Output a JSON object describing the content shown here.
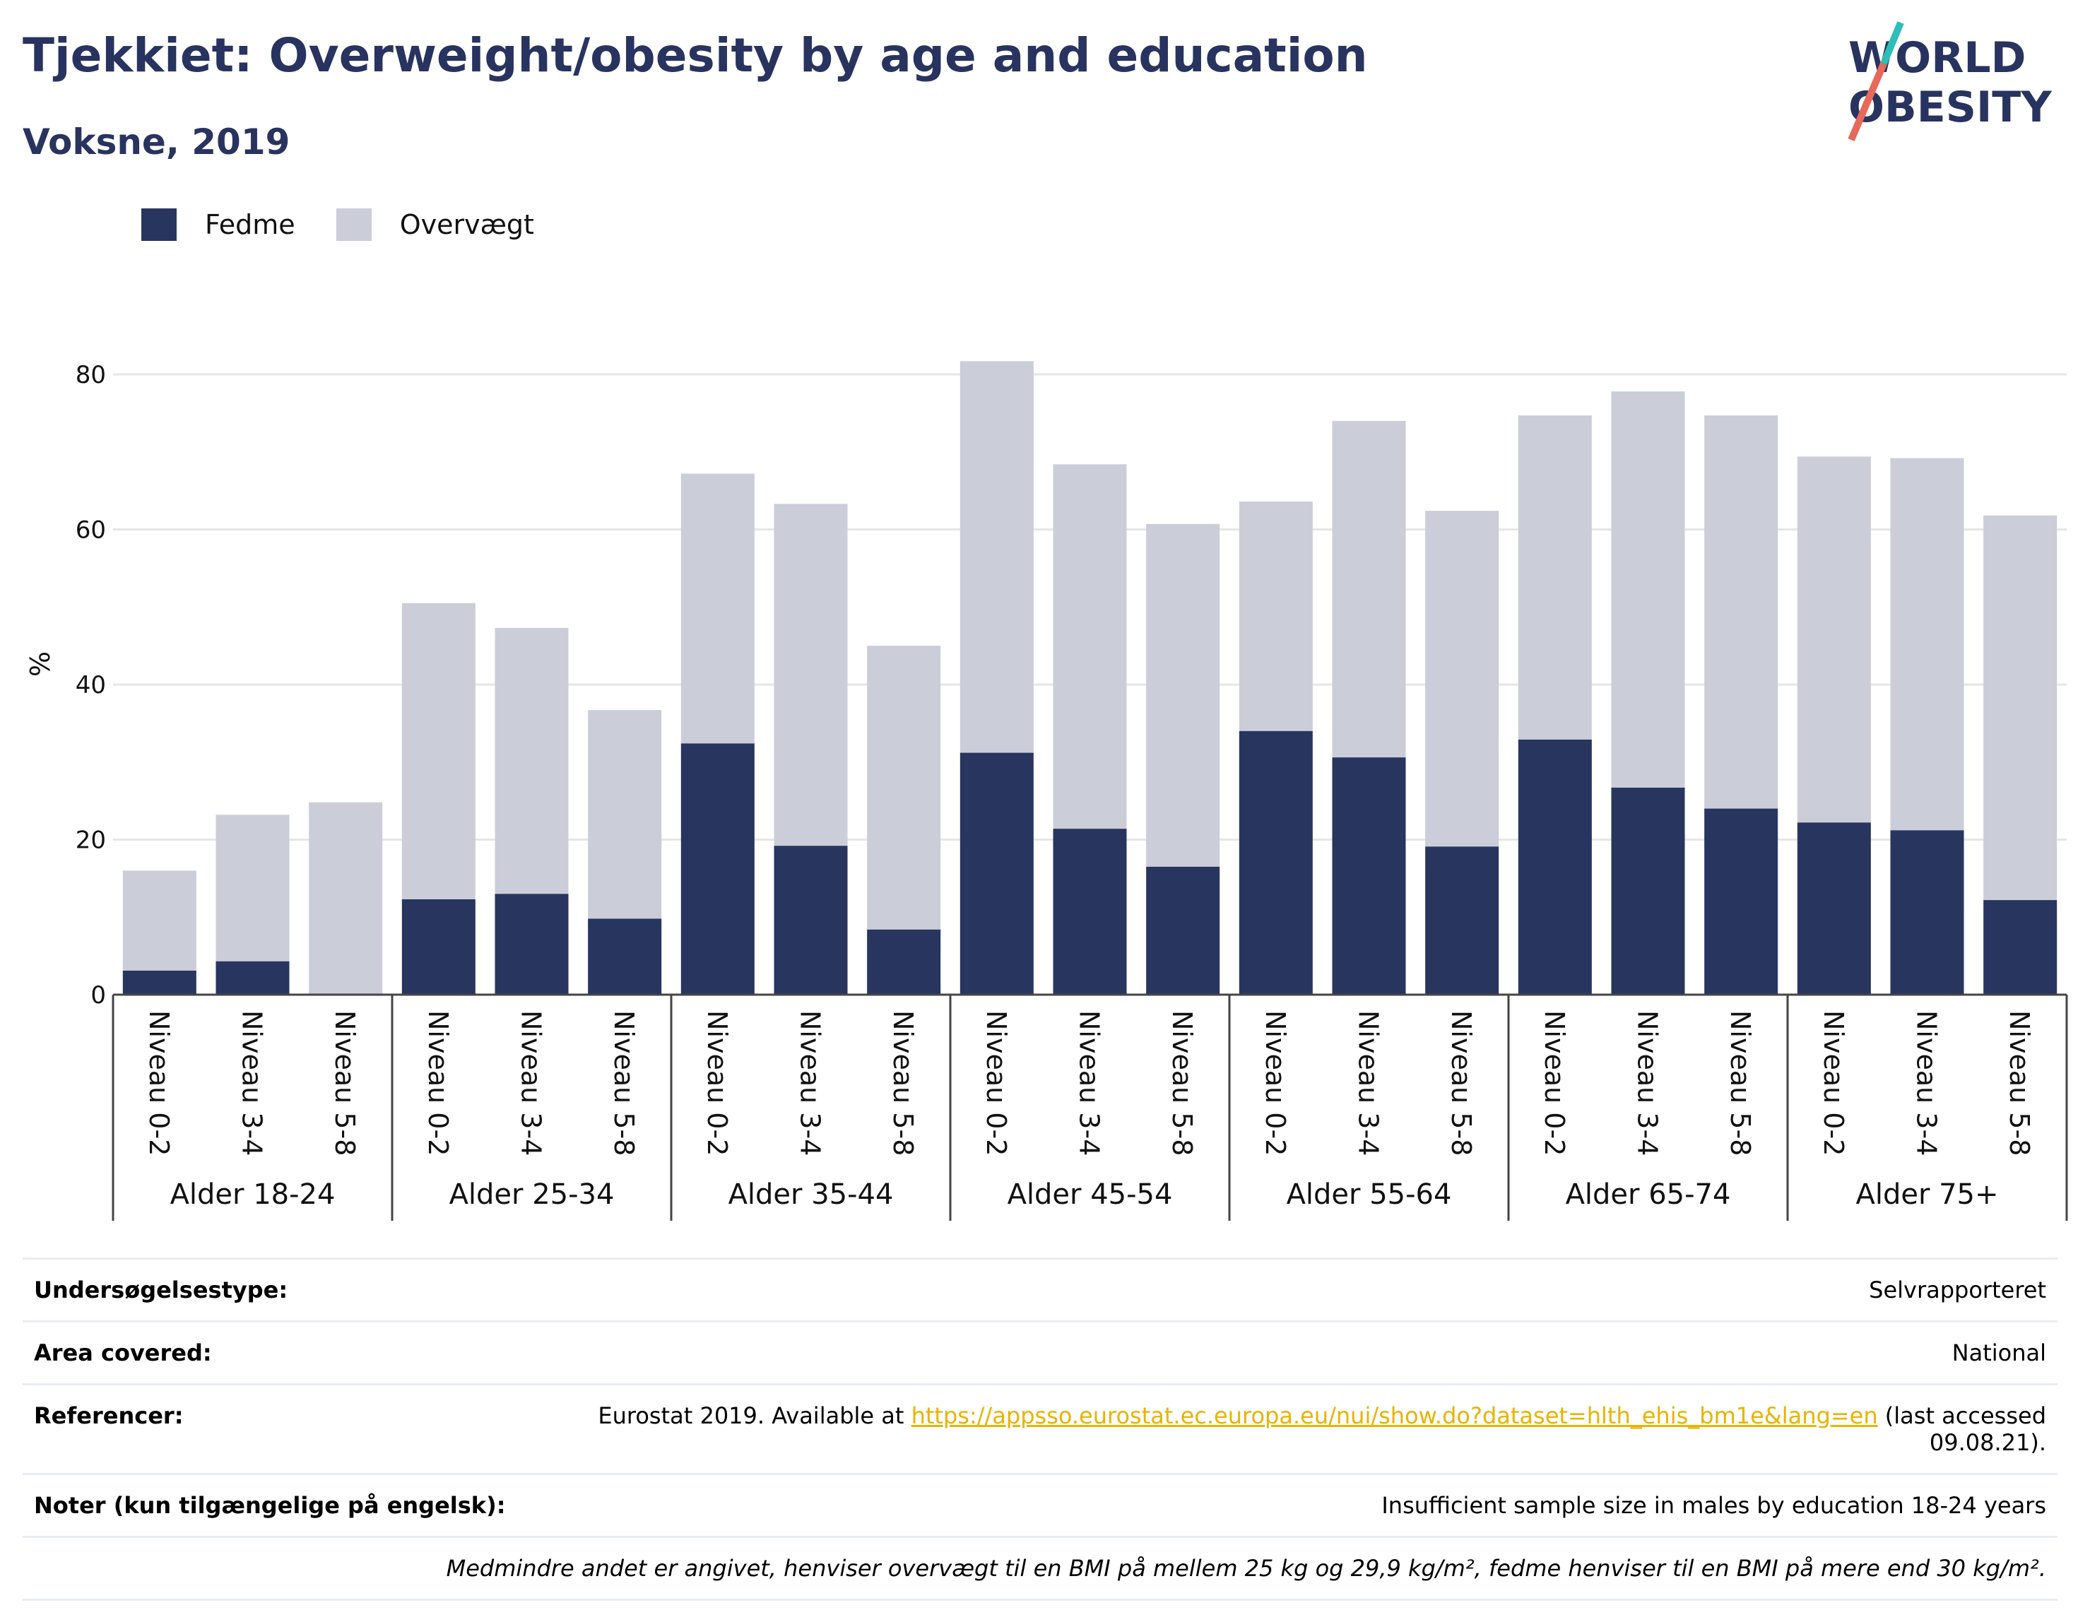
{
  "header": {
    "title": "Tjekkiet: Overweight/obesity by age and education",
    "subtitle": "Voksne, 2019"
  },
  "logo": {
    "line1": "WORLD",
    "line2": "OBESITY"
  },
  "legend": {
    "fedme": "Fedme",
    "overvaegt": "Overvægt"
  },
  "colors": {
    "fedme": "#28355f",
    "overvaegt": "#cbcdd8",
    "title": "#28335f",
    "link": "#e7b400"
  },
  "chart_data": {
    "type": "bar",
    "stacked": true,
    "ylabel": "%",
    "ylim": [
      0,
      82
    ],
    "yticks": [
      0,
      20,
      40,
      60,
      80
    ],
    "grid": true,
    "legend_position": "top-left",
    "groups": [
      "Alder 18-24",
      "Alder 25-34",
      "Alder 35-44",
      "Alder 45-54",
      "Alder 55-64",
      "Alder 65-74",
      "Alder 75+"
    ],
    "levels": [
      "Niveau 0-2",
      "Niveau 3-4",
      "Niveau 5-8"
    ],
    "series": [
      {
        "name": "Fedme",
        "values": [
          3.1,
          4.3,
          0,
          12.3,
          13.0,
          9.8,
          32.4,
          19.2,
          8.4,
          31.2,
          21.4,
          16.5,
          34.0,
          30.6,
          19.1,
          32.9,
          26.7,
          24.0,
          22.2,
          21.2,
          12.2
        ]
      },
      {
        "name": "Overvægt",
        "values": [
          12.9,
          18.9,
          24.8,
          38.2,
          34.3,
          26.9,
          34.8,
          44.1,
          36.6,
          50.5,
          47.0,
          44.2,
          29.6,
          43.4,
          43.3,
          41.8,
          51.1,
          50.7,
          47.2,
          48.0,
          49.6
        ]
      }
    ]
  },
  "info": {
    "survey_label": "Undersøgelsestype:",
    "survey_value": "Selvrapporteret",
    "area_label": "Area covered:",
    "area_value": "National",
    "ref_label": "Referencer:",
    "ref_prefix": "Eurostat 2019. Available at ",
    "ref_link": "https://appsso.eurostat.ec.europa.eu/nui/show.do?dataset=hlth_ehis_bm1e&lang=en",
    "ref_suffix": " (last accessed 09.08.21).",
    "notes_label": "Noter (kun tilgængelige på engelsk):",
    "notes_value": "Insufficient sample size in males by education 18-24 years",
    "footnote": "Medmindre andet er angivet, henviser overvægt til en BMI på mellem 25 kg og 29,9 kg/m², fedme henviser til en BMI på mere end 30 kg/m²."
  }
}
